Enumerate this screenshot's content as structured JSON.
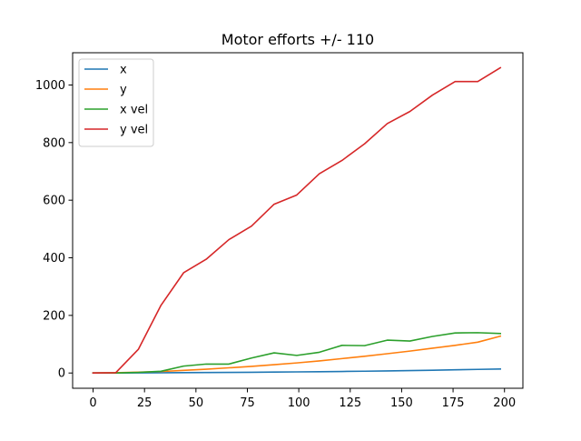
{
  "chart_data": {
    "type": "line",
    "title": "Motor efforts +/- 110",
    "xlabel": "",
    "ylabel": "",
    "xlim": [
      -9.95,
      208.95
    ],
    "ylim": [
      -53,
      1112
    ],
    "x_ticks": [
      0,
      25,
      50,
      75,
      100,
      125,
      150,
      175,
      200
    ],
    "y_ticks": [
      0,
      200,
      400,
      600,
      800,
      1000
    ],
    "grid": false,
    "legend_position": "upper left",
    "x": [
      0,
      11,
      22,
      33,
      44,
      55,
      66,
      77,
      88,
      99,
      110,
      121,
      132,
      143,
      154,
      165,
      176,
      187,
      198
    ],
    "series": [
      {
        "name": "x",
        "color": "#1f77b4",
        "values": [
          0,
          0.2,
          0.5,
          0.8,
          1.2,
          1.6,
          2,
          2.6,
          3.2,
          3.8,
          4.5,
          5.3,
          6.2,
          7.2,
          8.3,
          9.6,
          11,
          12.5,
          14
        ]
      },
      {
        "name": "y",
        "color": "#ff7f0e",
        "values": [
          0,
          1,
          3,
          5,
          9,
          13,
          18,
          23,
          29,
          35,
          42,
          50,
          58,
          67,
          76,
          86,
          96,
          107,
          128
        ]
      },
      {
        "name": "x vel",
        "color": "#2ca02c",
        "values": [
          0,
          0,
          2,
          6,
          24,
          31,
          31,
          52,
          70,
          61,
          72,
          96,
          95,
          114,
          111,
          127,
          139,
          140,
          137
        ]
      },
      {
        "name": "y vel",
        "color": "#d62728",
        "values": [
          0,
          1,
          82,
          235,
          348,
          395,
          463,
          510,
          586,
          618,
          692,
          738,
          796,
          866,
          908,
          965,
          1012,
          1012,
          1060
        ]
      }
    ]
  }
}
